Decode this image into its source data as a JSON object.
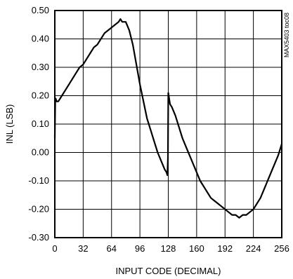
{
  "chart_data": {
    "type": "line",
    "title": "",
    "xlabel": "INPUT CODE (DECIMAL)",
    "ylabel": "INL (LSB)",
    "xlim": [
      0,
      256
    ],
    "ylim": [
      -0.3,
      0.5
    ],
    "xticks": [
      0,
      32,
      64,
      96,
      128,
      160,
      192,
      224,
      256
    ],
    "yticks": [
      0.5,
      0.4,
      0.3,
      0.2,
      0.1,
      0.0,
      -0.1,
      -0.2,
      -0.3
    ],
    "xtick_labels": [
      "0",
      "32",
      "64",
      "96",
      "128",
      "160",
      "192",
      "224",
      "256"
    ],
    "ytick_labels": [
      "0.50",
      "0.40",
      "0.30",
      "0.20",
      "0.10",
      "0.00",
      "-0.10",
      "-0.20",
      "-0.30"
    ],
    "grid": true,
    "side_code": "MAX5403 toc08",
    "series": [
      {
        "x": [
          0,
          0.5,
          1,
          2,
          4,
          8,
          12,
          16,
          20,
          24,
          28,
          32,
          36,
          40,
          44,
          48,
          52,
          56,
          60,
          64,
          68,
          72,
          74,
          76,
          78,
          80,
          84,
          88,
          92,
          96,
          100,
          104,
          108,
          112,
          116,
          120,
          124,
          126,
          127,
          127.6,
          128,
          129,
          130,
          132,
          136,
          140,
          144,
          148,
          152,
          156,
          160,
          164,
          168,
          172,
          176,
          180,
          184,
          188,
          192,
          196,
          200,
          204,
          208,
          212,
          216,
          220,
          224,
          228,
          232,
          236,
          240,
          244,
          248,
          252,
          256
        ],
        "y": [
          0.05,
          0.18,
          0.19,
          0.18,
          0.18,
          0.2,
          0.22,
          0.24,
          0.26,
          0.28,
          0.3,
          0.31,
          0.33,
          0.35,
          0.37,
          0.38,
          0.4,
          0.42,
          0.43,
          0.44,
          0.45,
          0.46,
          0.47,
          0.46,
          0.46,
          0.46,
          0.43,
          0.38,
          0.31,
          0.24,
          0.18,
          0.12,
          0.08,
          0.04,
          0.0,
          -0.03,
          -0.06,
          -0.07,
          -0.08,
          -0.02,
          0.21,
          0.19,
          0.17,
          0.16,
          0.13,
          0.09,
          0.05,
          0.02,
          -0.01,
          -0.04,
          -0.07,
          -0.1,
          -0.12,
          -0.14,
          -0.16,
          -0.17,
          -0.18,
          -0.19,
          -0.2,
          -0.21,
          -0.22,
          -0.22,
          -0.23,
          -0.22,
          -0.22,
          -0.21,
          -0.2,
          -0.18,
          -0.16,
          -0.13,
          -0.1,
          -0.07,
          -0.04,
          -0.01,
          0.03
        ]
      }
    ]
  }
}
